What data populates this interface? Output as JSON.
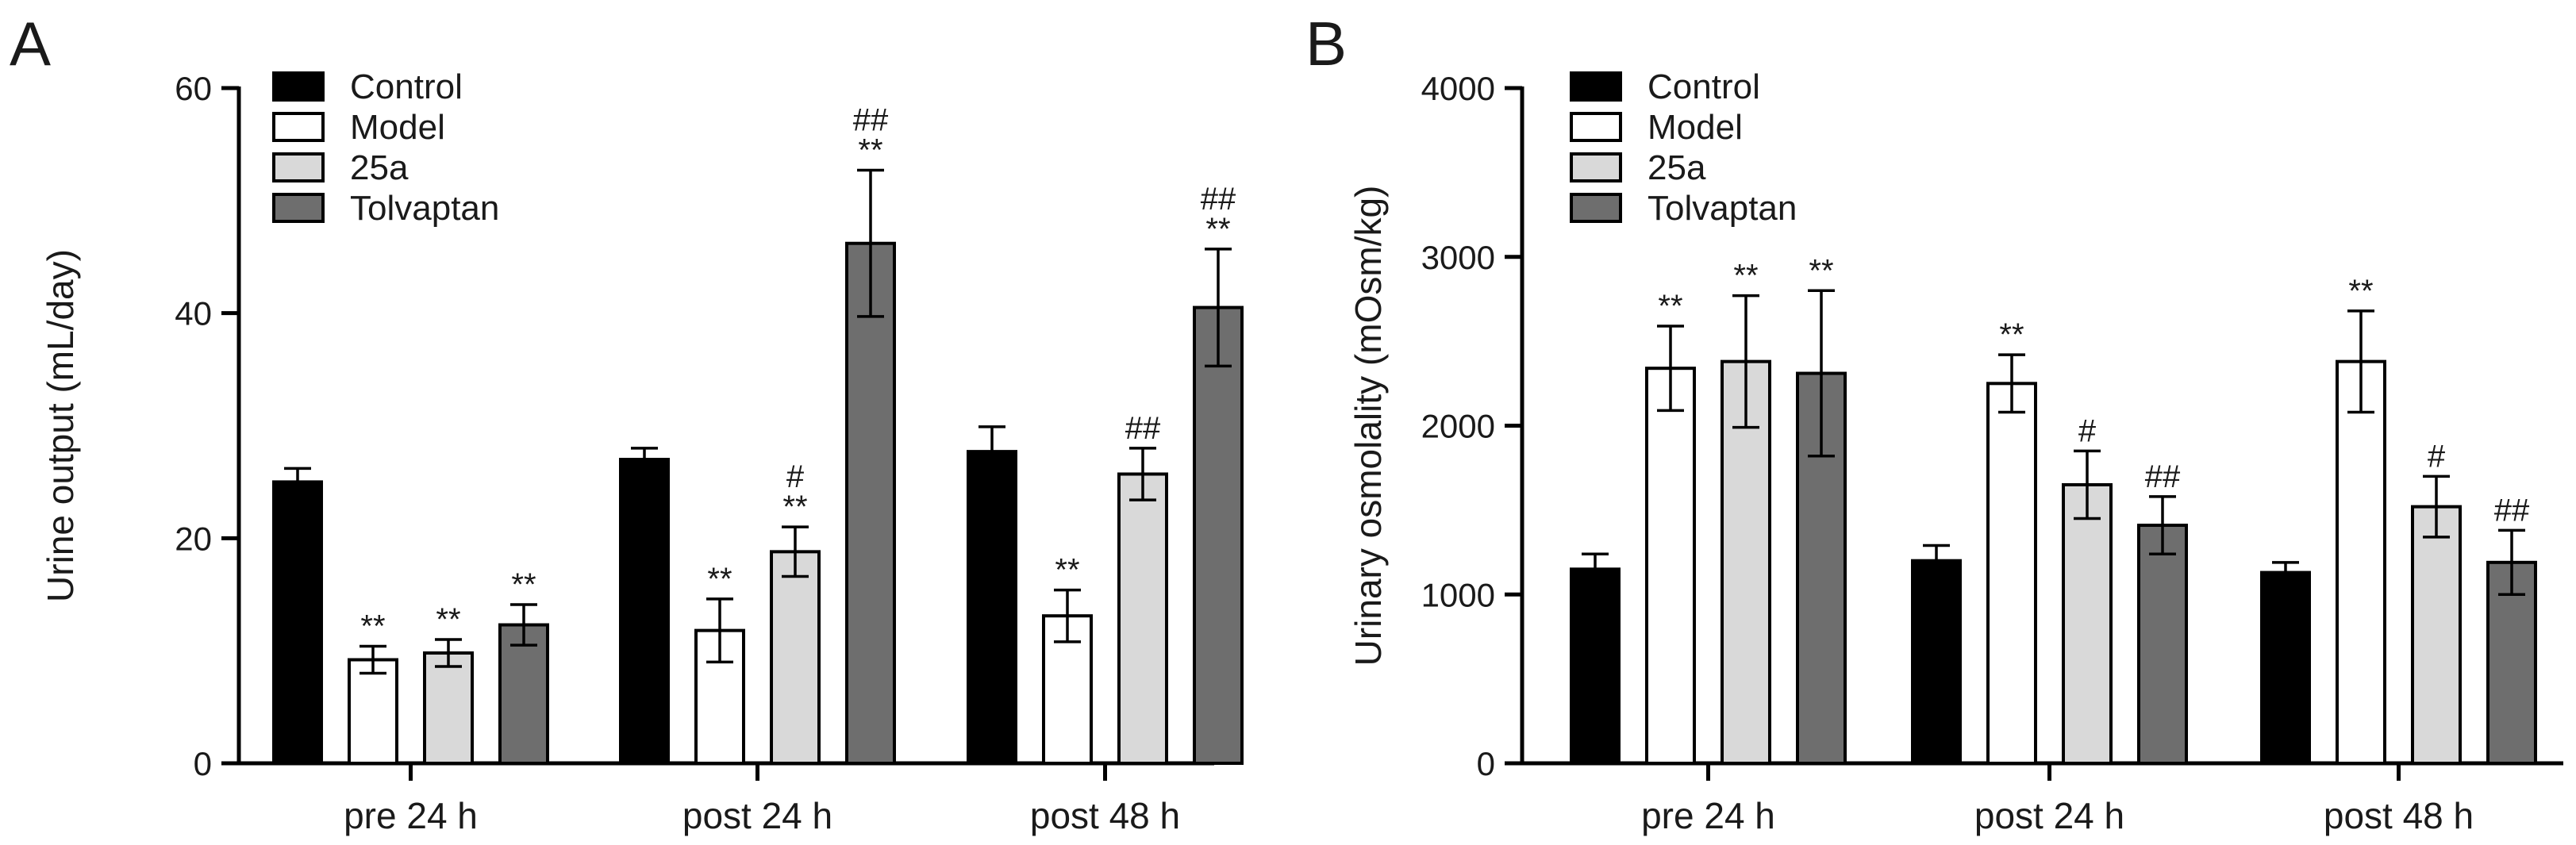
{
  "chart_data": [
    {
      "panel": "A",
      "type": "bar",
      "categories": [
        "pre 24 h",
        "post 24 h",
        "post 48 h"
      ],
      "ylabel": "Urine output (mL/day)",
      "xlabel": "",
      "ylim": [
        0,
        60
      ],
      "yticks": [
        "0",
        "20",
        "40",
        "60"
      ],
      "legend_position": "top-left",
      "series": [
        {
          "name": "Control",
          "color": "#000000",
          "values": [
            25,
            27,
            27.7
          ],
          "errors": [
            1.2,
            1.0,
            2.2
          ],
          "sig": [
            "",
            "",
            ""
          ]
        },
        {
          "name": "Model",
          "color": "#ffffff",
          "values": [
            9.2,
            11.8,
            13.1
          ],
          "errors": [
            1.2,
            2.8,
            2.3
          ],
          "sig": [
            "**",
            "**",
            "**"
          ]
        },
        {
          "name": "25a",
          "color": "#d9d9d9",
          "values": [
            9.8,
            18.8,
            25.7
          ],
          "errors": [
            1.2,
            2.2,
            2.3
          ],
          "sig": [
            "**",
            "**\n#",
            "##"
          ]
        },
        {
          "name": "Tolvaptan",
          "color": "#6e6e6e",
          "values": [
            12.3,
            46.2,
            40.5
          ],
          "errors": [
            1.8,
            6.5,
            5.2
          ],
          "sig": [
            "**",
            "**\n##",
            "**\n##"
          ]
        }
      ]
    },
    {
      "panel": "B",
      "type": "bar",
      "categories": [
        "pre 24 h",
        "post 24 h",
        "post 48 h"
      ],
      "ylabel": "Urinary osmolality  (mOsm/kg)",
      "xlabel": "",
      "ylim": [
        0,
        4000
      ],
      "yticks": [
        "0",
        "1000",
        "2000",
        "3000",
        "4000"
      ],
      "legend_position": "top-left",
      "series": [
        {
          "name": "Control",
          "color": "#000000",
          "values": [
            1150,
            1200,
            1130
          ],
          "errors": [
            90,
            90,
            60
          ],
          "sig": [
            "",
            "",
            ""
          ]
        },
        {
          "name": "Model",
          "color": "#ffffff",
          "values": [
            2340,
            2250,
            2380
          ],
          "errors": [
            250,
            170,
            300
          ],
          "sig": [
            "**",
            "**",
            "**"
          ]
        },
        {
          "name": "25a",
          "color": "#d9d9d9",
          "values": [
            2380,
            1650,
            1520
          ],
          "errors": [
            390,
            200,
            180
          ],
          "sig": [
            "**",
            "#",
            "#"
          ]
        },
        {
          "name": "Tolvaptan",
          "color": "#6e6e6e",
          "values": [
            2310,
            1410,
            1190
          ],
          "errors": [
            490,
            170,
            190
          ],
          "sig": [
            "**",
            "##",
            "##"
          ]
        }
      ]
    }
  ]
}
